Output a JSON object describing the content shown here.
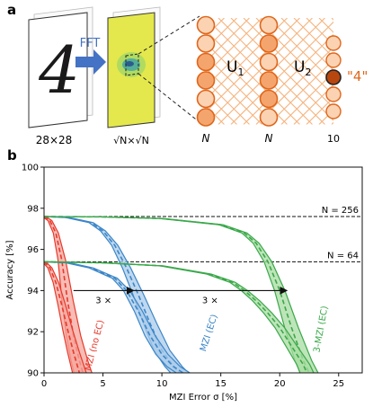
{
  "figure": {
    "panel_a": {
      "label": "a",
      "fft_label": "FFT",
      "digit_glyph": "4",
      "input_size_label": "28×28",
      "fft_size_label": "√N×√N",
      "layer1_label": "U",
      "layer1_sub": "1",
      "layer2_label": "U",
      "layer2_sub": "2",
      "output_label": "\"4\"",
      "n_label_1": "N",
      "n_label_2": "N",
      "out_count_label": "10",
      "colors": {
        "mesh": "#f5b27c",
        "node_light": "#fbd3b3",
        "node_mid": "#f4a56d",
        "node_stroke": "#e0661b",
        "output_fill": "#b8460f",
        "output_text": "#e0661b",
        "arrow": "#4472c4",
        "fft_bg": "#e6e84d"
      }
    },
    "panel_b": {
      "label": "b"
    }
  },
  "chart_data": {
    "type": "line",
    "xlabel": "MZI Error σ [%]",
    "ylabel": "Accuracy [%]",
    "xlim": [
      0,
      27
    ],
    "ylim": [
      90,
      100
    ],
    "xticks": [
      0,
      5,
      10,
      15,
      20,
      25
    ],
    "yticks": [
      90,
      92,
      94,
      96,
      98,
      100
    ],
    "reference_lines": [
      {
        "y": 97.6,
        "label": "N = 256"
      },
      {
        "y": 95.4,
        "label": "N = 64"
      }
    ],
    "arrows": [
      {
        "from_x": 2.5,
        "to_x": 7.6,
        "y": 94.0,
        "label": "3 ×"
      },
      {
        "from_x": 7.6,
        "to_x": 20.6,
        "y": 94.0,
        "label": "3 ×"
      }
    ],
    "series": [
      {
        "name": "MZI (no EC)",
        "color": "#e8392b",
        "band_color": "#f4a59c",
        "N256": {
          "x": [
            0,
            0.5,
            1.0,
            1.5,
            2.0,
            2.5,
            3.0,
            3.3
          ],
          "y": [
            97.6,
            97.4,
            96.8,
            95.5,
            93.5,
            91.8,
            90.6,
            90.0
          ]
        },
        "N64": {
          "x": [
            0,
            0.5,
            1.0,
            1.5,
            2.0,
            2.5,
            3.0
          ],
          "y": [
            95.4,
            95.1,
            94.4,
            93.3,
            92.1,
            91.0,
            90.0
          ]
        }
      },
      {
        "name": "MZI (EC)",
        "color": "#3c86c8",
        "band_color": "#a9cbea",
        "N256": {
          "x": [
            0,
            2,
            4,
            5,
            6,
            7,
            8,
            9,
            10,
            11,
            11.5
          ],
          "y": [
            97.6,
            97.55,
            97.3,
            96.9,
            96.2,
            95.1,
            93.8,
            92.4,
            91.1,
            90.3,
            90.0
          ]
        },
        "N64": {
          "x": [
            0,
            2,
            4,
            6,
            7,
            8,
            9,
            10,
            11,
            11.8
          ],
          "y": [
            95.4,
            95.35,
            95.1,
            94.6,
            94.0,
            93.0,
            91.8,
            90.9,
            90.3,
            90.0
          ]
        }
      },
      {
        "name": "3-MZI (EC)",
        "color": "#3aa84a",
        "band_color": "#a8dca2",
        "N256": {
          "x": [
            0,
            5,
            10,
            15,
            17,
            18,
            19,
            20,
            21,
            22,
            22.5
          ],
          "y": [
            97.6,
            97.58,
            97.5,
            97.2,
            96.8,
            96.3,
            95.4,
            94.0,
            92.2,
            90.6,
            90.0
          ]
        },
        "N64": {
          "x": [
            0,
            5,
            10,
            14,
            16,
            17,
            18,
            19,
            20,
            21,
            22,
            22.3
          ],
          "y": [
            95.4,
            95.35,
            95.2,
            94.8,
            94.4,
            94.0,
            93.5,
            92.9,
            92.2,
            91.3,
            90.4,
            90.0
          ]
        }
      }
    ]
  }
}
